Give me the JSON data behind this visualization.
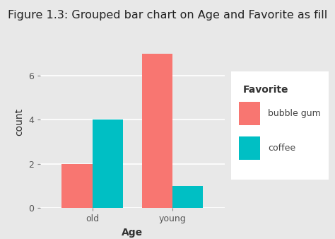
{
  "title": "Figure 1.3: Grouped bar chart on Age and Favorite as fill",
  "xlabel": "Age",
  "ylabel": "count",
  "categories": [
    "old",
    "young"
  ],
  "series": {
    "bubble gum": [
      2,
      7
    ],
    "coffee": [
      4,
      1
    ]
  },
  "colors": {
    "bubble gum": "#F87671",
    "coffee": "#00BFC4"
  },
  "legend_title": "Favorite",
  "ylim": [
    0,
    7.8
  ],
  "yticks": [
    0,
    2,
    4,
    6
  ],
  "background_color": "#E8E8E8",
  "plot_bg_color": "#E8E8E8",
  "bar_width": 0.38,
  "title_fontsize": 11.5,
  "axis_label_fontsize": 10,
  "tick_fontsize": 9,
  "legend_fontsize": 9,
  "legend_title_fontsize": 10
}
